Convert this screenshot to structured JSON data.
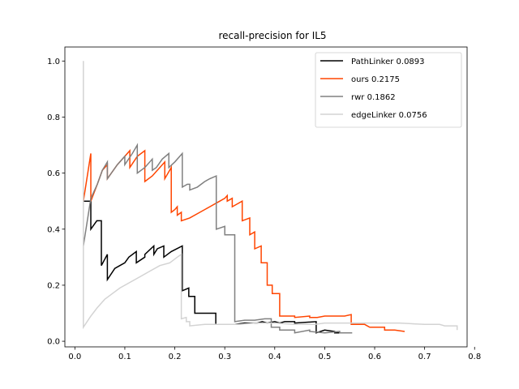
{
  "chart_data": {
    "type": "line",
    "title": "recall-precision for IL5",
    "xlabel": "",
    "ylabel": "",
    "xlim": [
      -0.02,
      0.785
    ],
    "ylim": [
      -0.02,
      1.05
    ],
    "xticks": [
      0.0,
      0.1,
      0.2,
      0.3,
      0.4,
      0.5,
      0.6,
      0.7,
      0.8
    ],
    "xtick_labels": [
      "0.0",
      "0.1",
      "0.2",
      "0.3",
      "0.4",
      "0.5",
      "0.6",
      "0.7",
      "0.8"
    ],
    "yticks": [
      0.0,
      0.2,
      0.4,
      0.6,
      0.8,
      1.0
    ],
    "ytick_labels": [
      "0.0",
      "0.2",
      "0.4",
      "0.6",
      "0.8",
      "1.0"
    ],
    "grid": false,
    "legend_position": "top-right",
    "series": [
      {
        "name": "PathLinker 0.0893",
        "color": "#000000",
        "points": [
          [
            0.017,
            0.5
          ],
          [
            0.032,
            0.5
          ],
          [
            0.032,
            0.5
          ],
          [
            0.032,
            0.4
          ],
          [
            0.044,
            0.43
          ],
          [
            0.044,
            0.43
          ],
          [
            0.044,
            0.43
          ],
          [
            0.053,
            0.43
          ],
          [
            0.053,
            0.27
          ],
          [
            0.065,
            0.31
          ],
          [
            0.065,
            0.22
          ],
          [
            0.08,
            0.26
          ],
          [
            0.09,
            0.27
          ],
          [
            0.1,
            0.28
          ],
          [
            0.108,
            0.3
          ],
          [
            0.108,
            0.3
          ],
          [
            0.123,
            0.32
          ],
          [
            0.123,
            0.28
          ],
          [
            0.14,
            0.3
          ],
          [
            0.14,
            0.31
          ],
          [
            0.158,
            0.34
          ],
          [
            0.158,
            0.31
          ],
          [
            0.165,
            0.33
          ],
          [
            0.178,
            0.34
          ],
          [
            0.178,
            0.3
          ],
          [
            0.193,
            0.32
          ],
          [
            0.193,
            0.32
          ],
          [
            0.215,
            0.34
          ],
          [
            0.215,
            0.3
          ],
          [
            0.215,
            0.18
          ],
          [
            0.228,
            0.19
          ],
          [
            0.228,
            0.16
          ],
          [
            0.24,
            0.16
          ],
          [
            0.24,
            0.1
          ],
          [
            0.282,
            0.1
          ],
          [
            0.282,
            0.06
          ],
          [
            0.31,
            0.06
          ],
          [
            0.32,
            0.06
          ],
          [
            0.34,
            0.065
          ],
          [
            0.355,
            0.065
          ],
          [
            0.365,
            0.065
          ],
          [
            0.375,
            0.07
          ],
          [
            0.385,
            0.065
          ],
          [
            0.4,
            0.07
          ],
          [
            0.41,
            0.065
          ],
          [
            0.42,
            0.07
          ],
          [
            0.44,
            0.07
          ],
          [
            0.44,
            0.065
          ],
          [
            0.483,
            0.07
          ],
          [
            0.483,
            0.03
          ],
          [
            0.5,
            0.04
          ],
          [
            0.52,
            0.035
          ],
          [
            0.52,
            0.03
          ],
          [
            0.535,
            0.03
          ]
        ]
      },
      {
        "name": "ours 0.2175",
        "color": "#ff4500",
        "points": [
          [
            0.017,
            0.5
          ],
          [
            0.017,
            0.5
          ],
          [
            0.032,
            0.67
          ],
          [
            0.032,
            0.5
          ],
          [
            0.045,
            0.56
          ],
          [
            0.045,
            0.56
          ],
          [
            0.055,
            0.61
          ],
          [
            0.065,
            0.63
          ],
          [
            0.065,
            0.58
          ],
          [
            0.085,
            0.63
          ],
          [
            0.1,
            0.66
          ],
          [
            0.11,
            0.68
          ],
          [
            0.11,
            0.62
          ],
          [
            0.125,
            0.66
          ],
          [
            0.125,
            0.66
          ],
          [
            0.14,
            0.68
          ],
          [
            0.14,
            0.57
          ],
          [
            0.155,
            0.59
          ],
          [
            0.165,
            0.61
          ],
          [
            0.17,
            0.62
          ],
          [
            0.17,
            0.62
          ],
          [
            0.18,
            0.64
          ],
          [
            0.18,
            0.58
          ],
          [
            0.193,
            0.62
          ],
          [
            0.193,
            0.46
          ],
          [
            0.2,
            0.47
          ],
          [
            0.205,
            0.48
          ],
          [
            0.205,
            0.45
          ],
          [
            0.213,
            0.46
          ],
          [
            0.213,
            0.43
          ],
          [
            0.23,
            0.44
          ],
          [
            0.25,
            0.46
          ],
          [
            0.27,
            0.48
          ],
          [
            0.29,
            0.5
          ],
          [
            0.3,
            0.51
          ],
          [
            0.305,
            0.52
          ],
          [
            0.305,
            0.5
          ],
          [
            0.315,
            0.51
          ],
          [
            0.315,
            0.48
          ],
          [
            0.325,
            0.49
          ],
          [
            0.335,
            0.5
          ],
          [
            0.335,
            0.43
          ],
          [
            0.35,
            0.44
          ],
          [
            0.35,
            0.38
          ],
          [
            0.36,
            0.39
          ],
          [
            0.36,
            0.33
          ],
          [
            0.373,
            0.34
          ],
          [
            0.373,
            0.28
          ],
          [
            0.385,
            0.28
          ],
          [
            0.385,
            0.2
          ],
          [
            0.395,
            0.2
          ],
          [
            0.395,
            0.17
          ],
          [
            0.41,
            0.17
          ],
          [
            0.41,
            0.09
          ],
          [
            0.44,
            0.09
          ],
          [
            0.44,
            0.085
          ],
          [
            0.47,
            0.09
          ],
          [
            0.47,
            0.085
          ],
          [
            0.485,
            0.085
          ],
          [
            0.5,
            0.09
          ],
          [
            0.54,
            0.09
          ],
          [
            0.553,
            0.095
          ],
          [
            0.553,
            0.06
          ],
          [
            0.58,
            0.06
          ],
          [
            0.59,
            0.05
          ],
          [
            0.62,
            0.05
          ],
          [
            0.62,
            0.04
          ],
          [
            0.64,
            0.04
          ],
          [
            0.66,
            0.035
          ]
        ]
      },
      {
        "name": "rwr 0.1862",
        "color": "#808080",
        "points": [
          [
            0.017,
            0.34
          ],
          [
            0.032,
            0.51
          ],
          [
            0.032,
            0.51
          ],
          [
            0.045,
            0.56
          ],
          [
            0.055,
            0.61
          ],
          [
            0.065,
            0.64
          ],
          [
            0.065,
            0.58
          ],
          [
            0.085,
            0.63
          ],
          [
            0.1,
            0.66
          ],
          [
            0.1,
            0.63
          ],
          [
            0.115,
            0.67
          ],
          [
            0.125,
            0.7
          ],
          [
            0.125,
            0.6
          ],
          [
            0.14,
            0.62
          ],
          [
            0.155,
            0.65
          ],
          [
            0.155,
            0.61
          ],
          [
            0.163,
            0.62
          ],
          [
            0.175,
            0.65
          ],
          [
            0.175,
            0.65
          ],
          [
            0.188,
            0.67
          ],
          [
            0.188,
            0.62
          ],
          [
            0.2,
            0.64
          ],
          [
            0.215,
            0.67
          ],
          [
            0.215,
            0.55
          ],
          [
            0.225,
            0.56
          ],
          [
            0.23,
            0.56
          ],
          [
            0.23,
            0.54
          ],
          [
            0.245,
            0.55
          ],
          [
            0.26,
            0.57
          ],
          [
            0.27,
            0.58
          ],
          [
            0.283,
            0.59
          ],
          [
            0.283,
            0.4
          ],
          [
            0.3,
            0.41
          ],
          [
            0.3,
            0.38
          ],
          [
            0.32,
            0.38
          ],
          [
            0.32,
            0.07
          ],
          [
            0.34,
            0.075
          ],
          [
            0.36,
            0.075
          ],
          [
            0.38,
            0.08
          ],
          [
            0.393,
            0.08
          ],
          [
            0.393,
            0.05
          ],
          [
            0.41,
            0.05
          ],
          [
            0.41,
            0.04
          ],
          [
            0.44,
            0.04
          ],
          [
            0.44,
            0.03
          ],
          [
            0.47,
            0.04
          ],
          [
            0.47,
            0.035
          ],
          [
            0.5,
            0.03
          ],
          [
            0.53,
            0.035
          ],
          [
            0.53,
            0.03
          ],
          [
            0.555,
            0.03
          ]
        ]
      },
      {
        "name": "edgeLinker 0.0756",
        "color": "#d3d3d3",
        "points": [
          [
            0.017,
            0.05
          ],
          [
            0.017,
            1.0
          ],
          [
            0.017,
            1.0
          ],
          [
            0.017,
            0.05
          ],
          [
            0.032,
            0.09
          ],
          [
            0.045,
            0.12
          ],
          [
            0.06,
            0.15
          ],
          [
            0.075,
            0.17
          ],
          [
            0.09,
            0.19
          ],
          [
            0.11,
            0.21
          ],
          [
            0.13,
            0.23
          ],
          [
            0.15,
            0.25
          ],
          [
            0.17,
            0.27
          ],
          [
            0.19,
            0.28
          ],
          [
            0.205,
            0.3
          ],
          [
            0.213,
            0.31
          ],
          [
            0.213,
            0.08
          ],
          [
            0.223,
            0.085
          ],
          [
            0.223,
            0.07
          ],
          [
            0.23,
            0.07
          ],
          [
            0.23,
            0.055
          ],
          [
            0.26,
            0.06
          ],
          [
            0.29,
            0.06
          ],
          [
            0.3,
            0.06
          ],
          [
            0.33,
            0.06
          ],
          [
            0.36,
            0.065
          ],
          [
            0.4,
            0.065
          ],
          [
            0.44,
            0.06
          ],
          [
            0.48,
            0.06
          ],
          [
            0.5,
            0.065
          ],
          [
            0.55,
            0.065
          ],
          [
            0.6,
            0.065
          ],
          [
            0.65,
            0.065
          ],
          [
            0.7,
            0.06
          ],
          [
            0.73,
            0.06
          ],
          [
            0.74,
            0.055
          ],
          [
            0.765,
            0.055
          ],
          [
            0.765,
            0.04
          ]
        ]
      }
    ]
  }
}
